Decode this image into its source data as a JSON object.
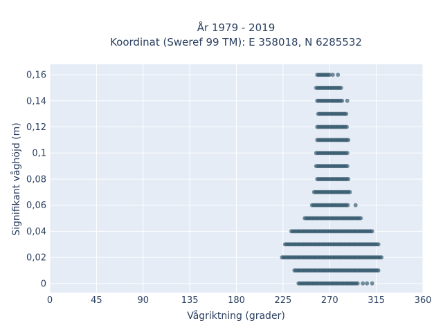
{
  "chart_data": {
    "type": "scatter",
    "title": [
      "År 1979 - 2019",
      "Koordinat (Sweref 99 TM): E 358018, N 6285532"
    ],
    "xlabel": "Vågriktning (grader)",
    "ylabel": "Signifikant våghöjd (m)",
    "xlim": [
      0,
      360
    ],
    "ylim": [
      -0.007,
      0.168
    ],
    "x_ticks": [
      0,
      45,
      90,
      135,
      180,
      225,
      270,
      315,
      360
    ],
    "x_tick_labels": [
      "0",
      "45",
      "90",
      "135",
      "180",
      "225",
      "270",
      "315",
      "360"
    ],
    "y_ticks": [
      0,
      0.02,
      0.04,
      0.06,
      0.08,
      0.1,
      0.12,
      0.14,
      0.16
    ],
    "y_tick_labels": [
      "0",
      "0,02",
      "0,04",
      "0,06",
      "0,08",
      "0,1",
      "0,12",
      "0,14",
      "0,16"
    ],
    "grid": true,
    "marker_color": "#2f5468",
    "background_color": "#e5ecf6",
    "bands": [
      {
        "y": 0.0,
        "x_min": 240,
        "x_max": 298,
        "outliers": [
          302,
          306,
          311
        ]
      },
      {
        "y": 0.01,
        "x_min": 236,
        "x_max": 318,
        "outliers": []
      },
      {
        "y": 0.02,
        "x_min": 224,
        "x_max": 320,
        "outliers": []
      },
      {
        "y": 0.03,
        "x_min": 227,
        "x_max": 318,
        "outliers": []
      },
      {
        "y": 0.04,
        "x_min": 233,
        "x_max": 312,
        "outliers": []
      },
      {
        "y": 0.05,
        "x_min": 246,
        "x_max": 301,
        "outliers": []
      },
      {
        "y": 0.06,
        "x_min": 253,
        "x_max": 288,
        "outliers": [
          295
        ]
      },
      {
        "y": 0.07,
        "x_min": 255,
        "x_max": 290,
        "outliers": []
      },
      {
        "y": 0.08,
        "x_min": 258,
        "x_max": 288,
        "outliers": []
      },
      {
        "y": 0.09,
        "x_min": 257,
        "x_max": 288,
        "outliers": []
      },
      {
        "y": 0.1,
        "x_min": 257,
        "x_max": 288,
        "outliers": []
      },
      {
        "y": 0.11,
        "x_min": 258,
        "x_max": 289,
        "outliers": []
      },
      {
        "y": 0.12,
        "x_min": 258,
        "x_max": 287,
        "outliers": []
      },
      {
        "y": 0.13,
        "x_min": 259,
        "x_max": 286,
        "outliers": []
      },
      {
        "y": 0.14,
        "x_min": 258,
        "x_max": 283,
        "outliers": [
          287
        ]
      },
      {
        "y": 0.15,
        "x_min": 257,
        "x_max": 281,
        "outliers": []
      },
      {
        "y": 0.16,
        "x_min": 258,
        "x_max": 270,
        "outliers": [
          273,
          278
        ]
      }
    ]
  }
}
